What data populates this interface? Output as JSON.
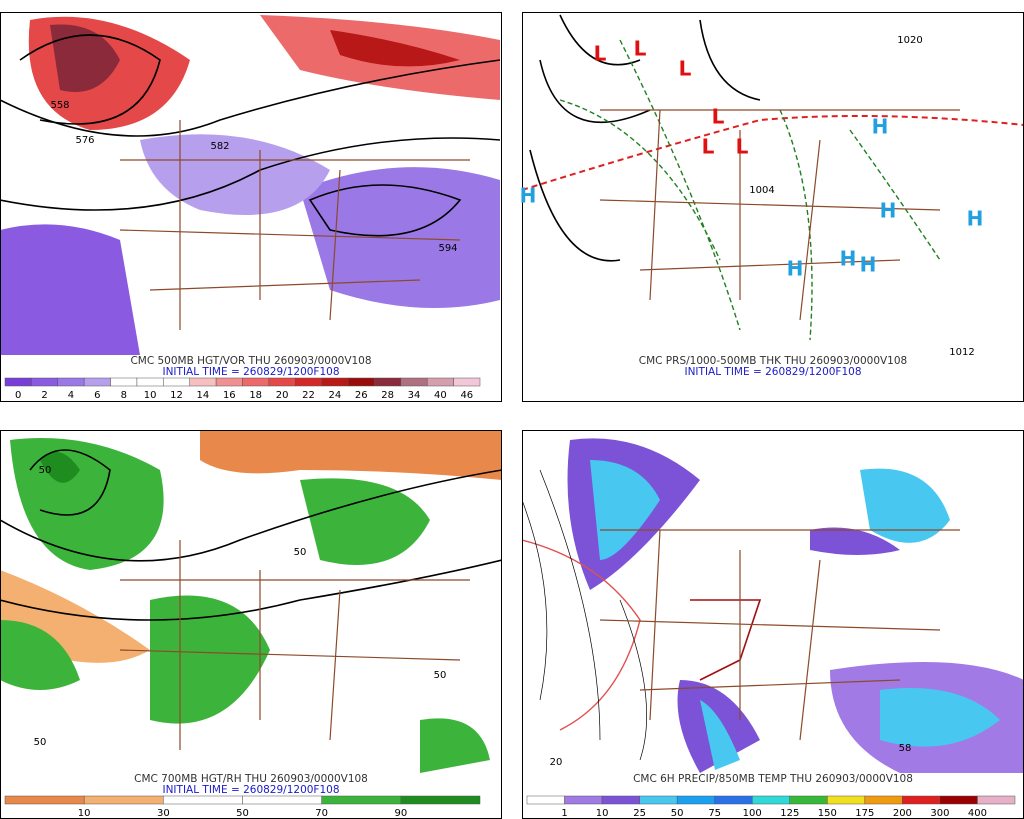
{
  "panels": [
    {
      "caption": "CMC 500MB HGT/VOR THU 260903/0000V108",
      "initial": "INITIAL TIME = 260829/1200F108",
      "label_at": "center",
      "scale": [
        "0",
        "2",
        "4",
        "6",
        "8",
        "10",
        "12",
        "14",
        "16",
        "18",
        "20",
        "22",
        "24",
        "26",
        "28",
        "34",
        "40",
        "46"
      ],
      "colors": [
        "#7a3ed8",
        "#8a5ae0",
        "#9a78e6",
        "#b6a0ee",
        "#ffffff",
        "#ffffff",
        "#ffffff",
        "#f6c0c0",
        "#f09090",
        "#ec6a6a",
        "#e44848",
        "#d42828",
        "#b81818",
        "#9a0c0c",
        "#8a2a3a",
        "#b07080",
        "#d4a0b0",
        "#f2c8d8"
      ],
      "labels": [
        "558",
        "576",
        "582",
        "594"
      ]
    },
    {
      "caption": "CMC PRS/1000-500MB THK THU 260903/0000V108",
      "initial": "INITIAL TIME = 260829/1200F108",
      "label_at": "none",
      "scale": [],
      "colors": [],
      "labels": [
        "L",
        "L",
        "L",
        "L",
        "L",
        "L",
        "H",
        "H",
        "H",
        "H",
        "H",
        "H",
        "H",
        "1004",
        "1020",
        "1012"
      ]
    },
    {
      "caption": "CMC 700MB HGT/RH THU 260903/0000V108",
      "initial": "INITIAL TIME = 260829/1200F108",
      "label_at": "edge",
      "scale": [
        "10",
        "30",
        "50",
        "70",
        "90"
      ],
      "colors": [
        "#e8884a",
        "#f4b070",
        "#ffffff",
        "#ffffff",
        "#3cb43c",
        "#1e8c1e"
      ],
      "labels": [
        "50",
        "50",
        "50",
        "50"
      ]
    },
    {
      "caption": "CMC 6H PRECIP/850MB TEMP THU 260903/0000V108",
      "initial": "",
      "label_at": "edge",
      "scale": [
        "1",
        "10",
        "25",
        "50",
        "75",
        "100",
        "125",
        "150",
        "175",
        "200",
        "300",
        "400"
      ],
      "colors": [
        "#ffffff",
        "#a27ae6",
        "#7c52d6",
        "#48c8f0",
        "#1aa0f0",
        "#2a70e8",
        "#30d8d8",
        "#38b838",
        "#f0e020",
        "#f09a10",
        "#e02020",
        "#9a0000",
        "#e6b0c8"
      ],
      "labels": [
        "20",
        "58"
      ]
    }
  ]
}
